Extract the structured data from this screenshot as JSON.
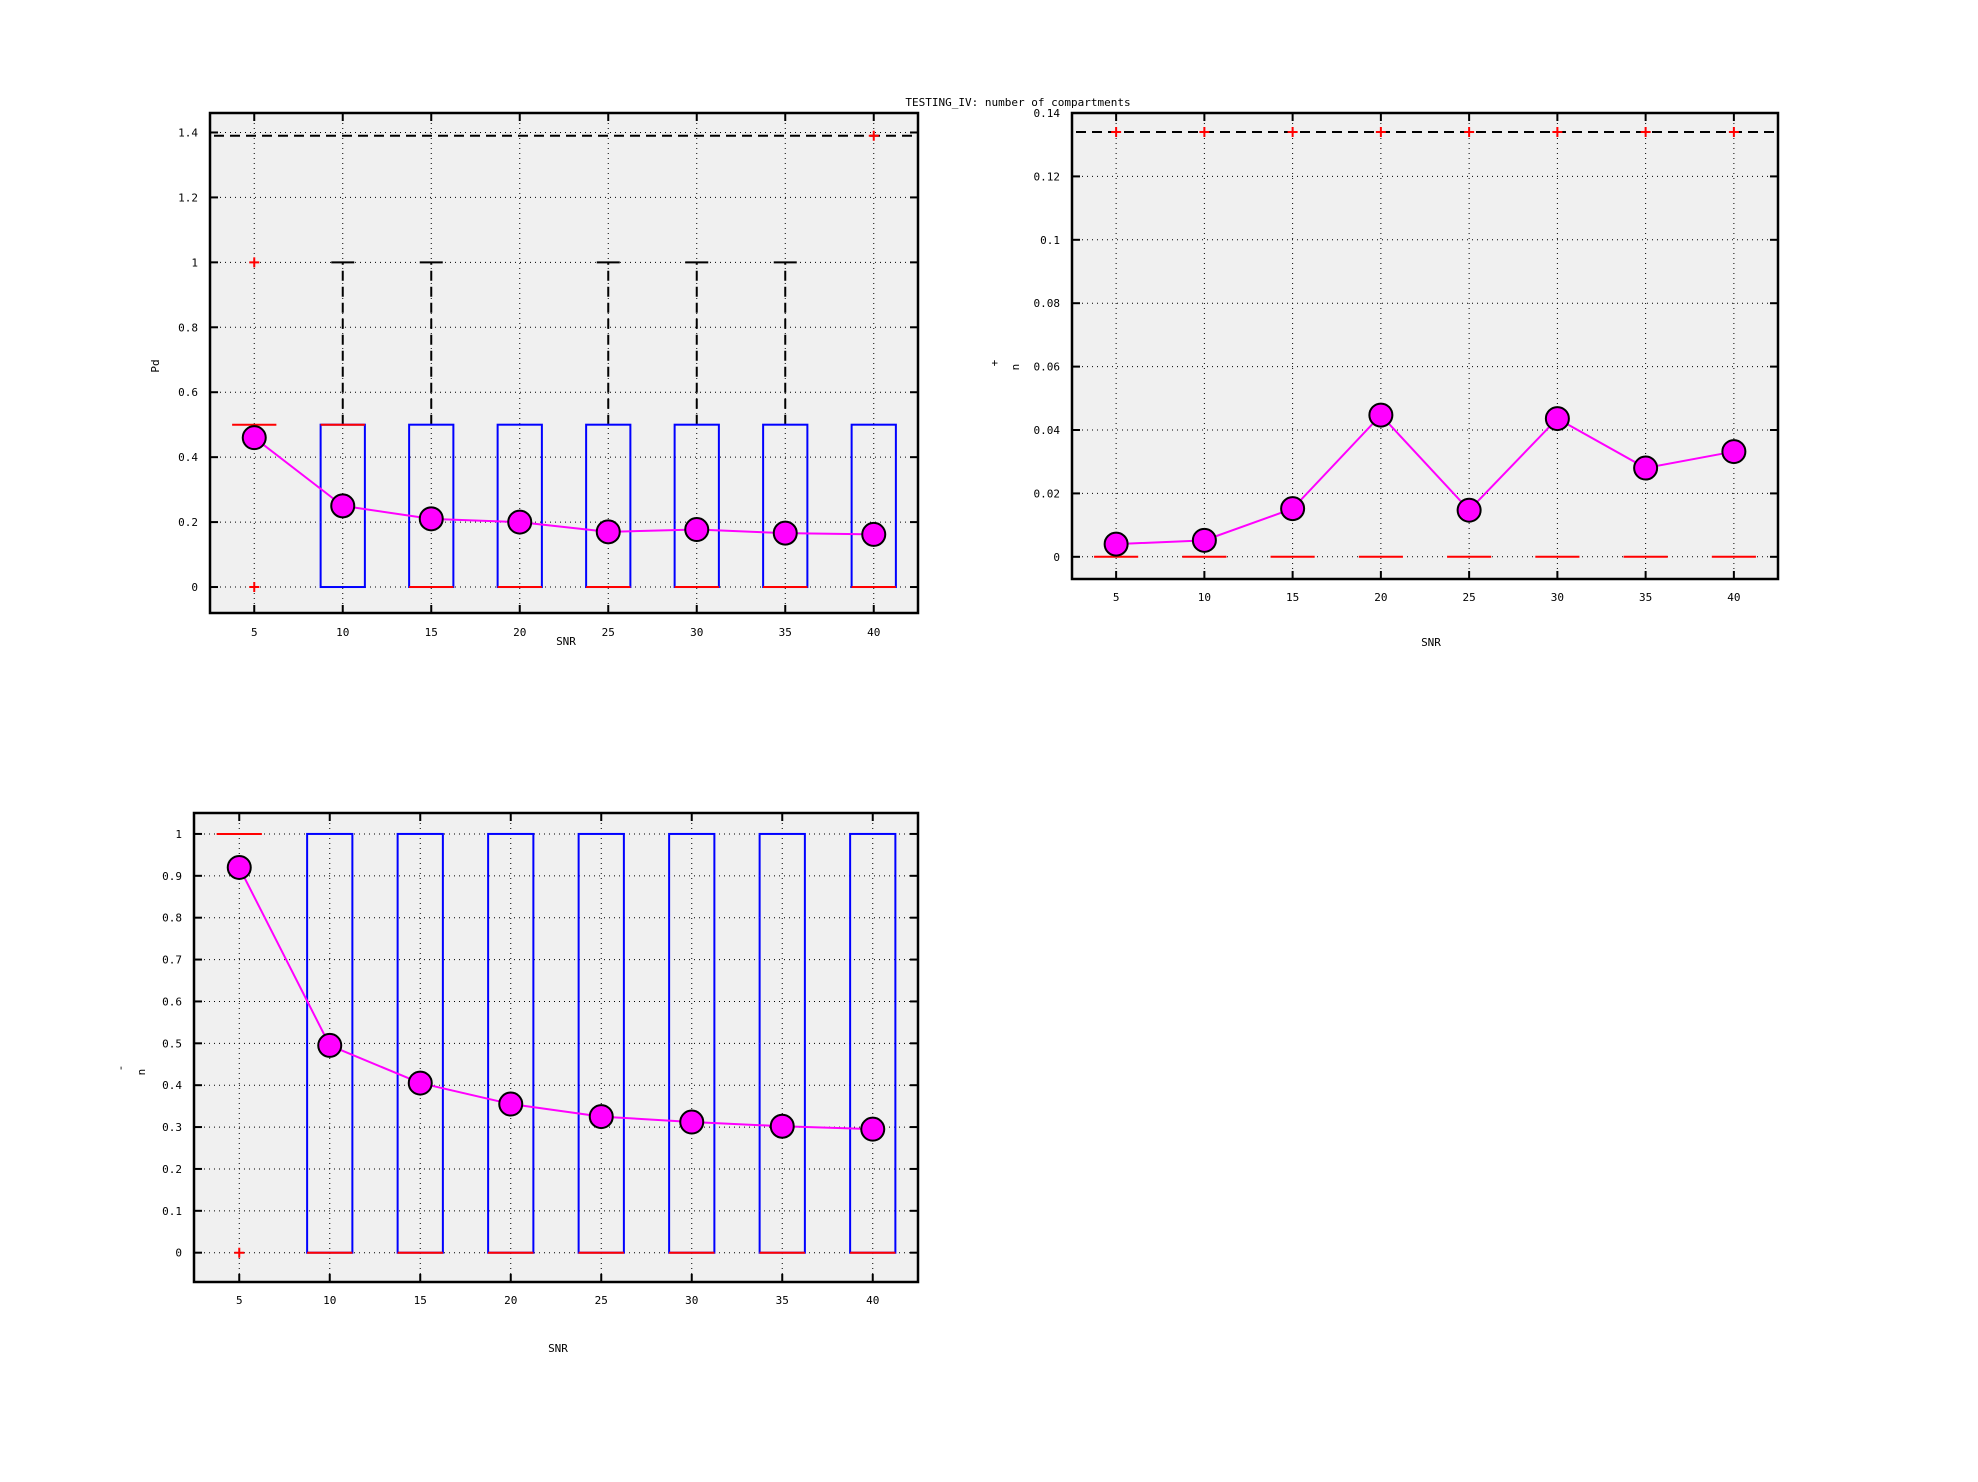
{
  "figure_title": "TESTING_IV: number of compartments",
  "colors": {
    "box": "#0000ff",
    "median": "#ff0000",
    "outlier": "#ff0000",
    "mean": "#ff00ff",
    "whisker": "#000000",
    "plot_bg": "#f0f0f0"
  },
  "chart_data": [
    {
      "type": "box",
      "xlabel": "SNR",
      "ylabel": "Pd",
      "ylabel_mark": "",
      "xlim": [
        2.5,
        42.5
      ],
      "ylim": [
        -0.08,
        1.46
      ],
      "grid": true,
      "xticks": [
        5,
        10,
        15,
        20,
        25,
        30,
        35,
        40
      ],
      "xtick_labels": [
        "5",
        "10",
        "15",
        "20",
        "25",
        "30",
        "35",
        "40"
      ],
      "yticks": [
        0,
        0.2,
        0.4,
        0.6,
        0.8,
        1,
        1.2,
        1.4
      ],
      "ytick_labels": [
        "0",
        "0.2",
        "0.4",
        "0.6",
        "0.8",
        "1",
        "1.2",
        "1.4"
      ],
      "reference_line": 1.39,
      "boxes": [
        {
          "x": 5,
          "q1": 0.5,
          "median": 0.5,
          "q3": 0.5,
          "whisker_high": null,
          "outliers": [
            0,
            1
          ]
        },
        {
          "x": 10,
          "q1": 0,
          "median": 0.5,
          "q3": 0.5,
          "whisker_high": 1,
          "outliers": []
        },
        {
          "x": 15,
          "q1": 0,
          "median": 0,
          "q3": 0.5,
          "whisker_high": 1,
          "outliers": []
        },
        {
          "x": 20,
          "q1": 0,
          "median": 0,
          "q3": 0.5,
          "whisker_high": null,
          "outliers": []
        },
        {
          "x": 25,
          "q1": 0,
          "median": 0,
          "q3": 0.5,
          "whisker_high": 1,
          "outliers": []
        },
        {
          "x": 30,
          "q1": 0,
          "median": 0,
          "q3": 0.5,
          "whisker_high": 1,
          "outliers": []
        },
        {
          "x": 35,
          "q1": 0,
          "median": 0,
          "q3": 0.5,
          "whisker_high": 1,
          "outliers": []
        },
        {
          "x": 40,
          "q1": 0,
          "median": 0,
          "q3": 0.5,
          "whisker_high": null,
          "outliers": [
            1.39
          ]
        }
      ],
      "means": [
        0.46,
        0.25,
        0.21,
        0.2,
        0.17,
        0.177,
        0.166,
        0.162
      ]
    },
    {
      "type": "box",
      "xlabel": "SNR",
      "ylabel": "n",
      "ylabel_mark": "+",
      "xlim": [
        2.5,
        42.5
      ],
      "ylim": [
        -0.007,
        0.14
      ],
      "grid": true,
      "xticks": [
        5,
        10,
        15,
        20,
        25,
        30,
        35,
        40
      ],
      "xtick_labels": [
        "5",
        "10",
        "15",
        "20",
        "25",
        "30",
        "35",
        "40"
      ],
      "yticks": [
        0,
        0.02,
        0.04,
        0.06,
        0.08,
        0.1,
        0.12,
        0.14
      ],
      "ytick_labels": [
        "0",
        "0.02",
        "0.04",
        "0.06",
        "0.08",
        "0.1",
        "0.12",
        "0.14"
      ],
      "reference_line": 0.134,
      "boxes": [
        {
          "x": 5,
          "q1": 0,
          "median": 0,
          "q3": 0,
          "whisker_high": null,
          "outliers": [
            0.134
          ]
        },
        {
          "x": 10,
          "q1": 0,
          "median": 0,
          "q3": 0,
          "whisker_high": null,
          "outliers": [
            0.134
          ]
        },
        {
          "x": 15,
          "q1": 0,
          "median": 0,
          "q3": 0,
          "whisker_high": null,
          "outliers": [
            0.134
          ]
        },
        {
          "x": 20,
          "q1": 0,
          "median": 0,
          "q3": 0,
          "whisker_high": null,
          "outliers": [
            0.134
          ]
        },
        {
          "x": 25,
          "q1": 0,
          "median": 0,
          "q3": 0,
          "whisker_high": null,
          "outliers": [
            0.134
          ]
        },
        {
          "x": 30,
          "q1": 0,
          "median": 0,
          "q3": 0,
          "whisker_high": null,
          "outliers": [
            0.134
          ]
        },
        {
          "x": 35,
          "q1": 0,
          "median": 0,
          "q3": 0,
          "whisker_high": null,
          "outliers": [
            0.134
          ]
        },
        {
          "x": 40,
          "q1": 0,
          "median": 0,
          "q3": 0,
          "whisker_high": null,
          "outliers": [
            0.134
          ]
        }
      ],
      "means": [
        0.004,
        0.0052,
        0.0152,
        0.0447,
        0.0147,
        0.0436,
        0.028,
        0.0332
      ]
    },
    {
      "type": "box",
      "xlabel": "SNR",
      "ylabel": "n",
      "ylabel_mark": "-",
      "xlim": [
        2.5,
        42.5
      ],
      "ylim": [
        -0.07,
        1.05
      ],
      "grid": true,
      "xticks": [
        5,
        10,
        15,
        20,
        25,
        30,
        35,
        40
      ],
      "xtick_labels": [
        "5",
        "10",
        "15",
        "20",
        "25",
        "30",
        "35",
        "40"
      ],
      "yticks": [
        0,
        0.1,
        0.2,
        0.3,
        0.4,
        0.5,
        0.6,
        0.7,
        0.8,
        0.9,
        1
      ],
      "ytick_labels": [
        "0",
        "0.1",
        "0.2",
        "0.3",
        "0.4",
        "0.5",
        "0.6",
        "0.7",
        "0.8",
        "0.9",
        "1"
      ],
      "reference_line": null,
      "boxes": [
        {
          "x": 5,
          "q1": 1,
          "median": 1,
          "q3": 1,
          "whisker_high": null,
          "outliers": [
            0
          ]
        },
        {
          "x": 10,
          "q1": 0,
          "median": 0,
          "q3": 1,
          "whisker_high": null,
          "outliers": []
        },
        {
          "x": 15,
          "q1": 0,
          "median": 0,
          "q3": 1,
          "whisker_high": null,
          "outliers": []
        },
        {
          "x": 20,
          "q1": 0,
          "median": 0,
          "q3": 1,
          "whisker_high": null,
          "outliers": []
        },
        {
          "x": 25,
          "q1": 0,
          "median": 0,
          "q3": 1,
          "whisker_high": null,
          "outliers": []
        },
        {
          "x": 30,
          "q1": 0,
          "median": 0,
          "q3": 1,
          "whisker_high": null,
          "outliers": []
        },
        {
          "x": 35,
          "q1": 0,
          "median": 0,
          "q3": 1,
          "whisker_high": null,
          "outliers": []
        },
        {
          "x": 40,
          "q1": 0,
          "median": 0,
          "q3": 1,
          "whisker_high": null,
          "outliers": []
        }
      ],
      "means": [
        0.92,
        0.495,
        0.405,
        0.355,
        0.325,
        0.312,
        0.302,
        0.295
      ]
    }
  ]
}
